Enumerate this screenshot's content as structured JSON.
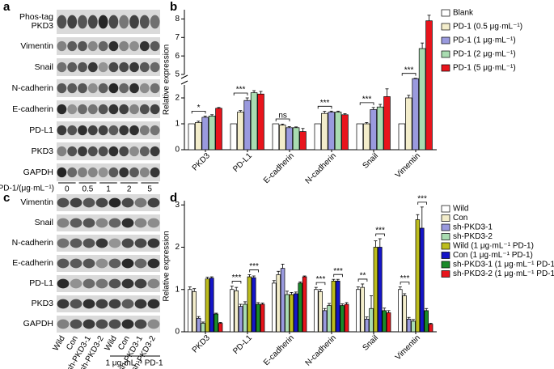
{
  "blot_a": {
    "panel": "a",
    "rows": [
      "Phos-tag PKD3",
      "Vimentin",
      "Snail",
      "N-cadherin",
      "E-cadherin",
      "PD-L1",
      "PKD3",
      "GAPDH"
    ],
    "lane_title": "PD-1/(μg·mL⁻¹)",
    "lanes": [
      "0",
      "0.5",
      "1",
      "2",
      "5"
    ]
  },
  "blot_c": {
    "panel": "c",
    "rows": [
      "Vimentin",
      "Snail",
      "N-cadherin",
      "E-cadherin",
      "PD-L1",
      "PKD3",
      "GAPDH"
    ],
    "lanes": [
      "Wild",
      "Con",
      "sh-PKD3-1",
      "sh-PKD3-2",
      "Wild",
      "Con",
      "sh-PKD3-1",
      "sh-PKD3-2"
    ],
    "treatment": "1 μg·mL⁻¹ PD-1"
  },
  "chart_data": [
    {
      "type": "bar",
      "panel": "b",
      "y_label": "Relative expression",
      "categories": [
        "PKD3",
        "PD-L1",
        "E-cadherin",
        "N-cadherin",
        "Snail",
        "Vimentin"
      ],
      "ylim": [
        0,
        8.5
      ],
      "axis_break": [
        2.5,
        5
      ],
      "yticks": [
        0,
        1,
        2,
        5,
        6,
        7,
        8
      ],
      "significance": [
        "*",
        "***",
        "ns",
        "***",
        "***",
        "***"
      ],
      "series": [
        {
          "name": "Blank",
          "color": "#ffffff",
          "values": [
            1,
            1,
            1,
            1,
            1,
            1
          ]
        },
        {
          "name": "PD-1 (0.5 μg·mL⁻¹)",
          "color": "#f3edcb",
          "values": [
            1.05,
            1.45,
            0.95,
            1.4,
            1.0,
            2.0
          ],
          "errors": [
            0.05,
            0.06,
            0.04,
            0.08,
            0.05,
            0.1
          ]
        },
        {
          "name": "PD-1 (1 μg·mL⁻¹)",
          "color": "#9a9ade",
          "values": [
            1.25,
            1.9,
            0.85,
            1.45,
            1.55,
            4
          ],
          "errors": [
            0.05,
            0.1,
            0.04,
            0.04,
            0.08,
            0.1
          ]
        },
        {
          "name": "PD-1 (2 μg·mL⁻¹)",
          "color": "#a9dcb1",
          "values": [
            1.3,
            2.2,
            0.85,
            1.45,
            1.65,
            6.4
          ],
          "errors": [
            0.05,
            0.08,
            0.03,
            0.04,
            0.1,
            0.3
          ]
        },
        {
          "name": "PD-1 (5 μg·mL⁻¹)",
          "color": "#e8141c",
          "values": [
            1.6,
            2.15,
            0.7,
            1.35,
            2.05,
            7.9
          ],
          "errors": [
            0.03,
            0.1,
            0.12,
            0.04,
            0.3,
            0.3
          ]
        }
      ]
    },
    {
      "type": "bar",
      "panel": "d",
      "y_label": "Relative expression",
      "categories": [
        "PKD3",
        "PD-L1",
        "E-cadherin",
        "N-cadherin",
        "Snail",
        "Vimentin"
      ],
      "ylim": [
        0,
        3.1
      ],
      "yticks": [
        0,
        1,
        2,
        3
      ],
      "significance": [
        [
          null,
          null
        ],
        [
          "***",
          "***"
        ],
        [
          null,
          null
        ],
        [
          "***",
          "***"
        ],
        [
          "**",
          "***"
        ],
        [
          "***",
          "***"
        ]
      ],
      "series": [
        {
          "name": "Wild",
          "color": "#ffffff",
          "values": [
            1,
            1,
            1.15,
            1,
            1,
            1
          ],
          "errors": [
            0.06,
            0.08,
            0.06,
            0.05,
            0.06,
            0.06
          ]
        },
        {
          "name": "Con",
          "color": "#f3edcb",
          "values": [
            0.95,
            0.97,
            1.35,
            0.95,
            1.05,
            0.85
          ],
          "errors": [
            0.07,
            0.08,
            0.08,
            0.05,
            0.08,
            0.05
          ]
        },
        {
          "name": "sh-PKD3-1",
          "color": "#9a9ade",
          "values": [
            0.32,
            0.6,
            1.5,
            0.5,
            0.3,
            0.3
          ],
          "errors": [
            0.04,
            0.05,
            0.1,
            0.05,
            0.05,
            0.04
          ]
        },
        {
          "name": "sh-PKD3-2",
          "color": "#a9dcb1",
          "values": [
            0.2,
            0.65,
            0.88,
            0.62,
            0.55,
            0.25
          ],
          "errors": [
            0.03,
            0.06,
            0.08,
            0.05,
            0.3,
            0.04
          ]
        },
        {
          "name": "Wild (1 μg·mL⁻¹ PD-1)",
          "color": "#bdbd1e",
          "values": [
            1.25,
            1.3,
            0.88,
            1.2,
            2.0,
            2.65
          ],
          "errors": [
            0.04,
            0.05,
            0.05,
            0.04,
            0.15,
            0.12
          ]
        },
        {
          "name": "Con (1 μg·mL⁻¹ PD-1)",
          "color": "#1515c8",
          "values": [
            1.27,
            1.28,
            0.9,
            1.2,
            2.0,
            2.45
          ],
          "errors": [
            0.03,
            0.04,
            0.04,
            0.04,
            0.2,
            0.5
          ]
        },
        {
          "name": "sh-PKD3-1 (1 μg·mL⁻¹ PD-1)",
          "color": "#1a8a2a",
          "values": [
            0.42,
            0.65,
            1.15,
            0.62,
            0.5,
            0.5
          ],
          "errors": [
            0.02,
            0.04,
            0.03,
            0.04,
            0.06,
            0.05
          ]
        },
        {
          "name": "sh-PKD3-2 (1 μg·mL⁻¹ PD-1)",
          "color": "#e8141c",
          "values": [
            0.2,
            0.65,
            1.3,
            0.65,
            0.45,
            0.18
          ],
          "errors": [
            0.02,
            0.03,
            0.02,
            0.04,
            0.05,
            0.02
          ]
        }
      ]
    }
  ]
}
